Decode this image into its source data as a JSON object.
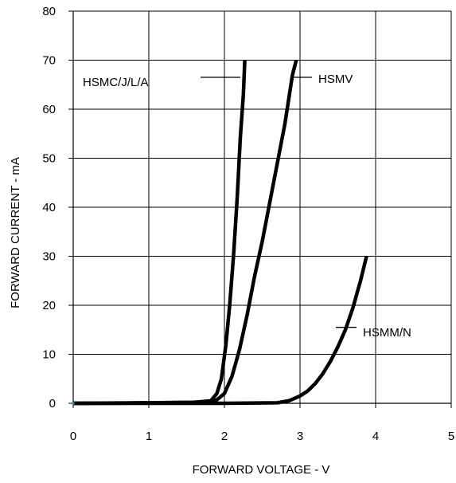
{
  "chart_data": {
    "type": "line",
    "title": "",
    "xlabel": "FORWARD VOLTAGE - V",
    "ylabel": "FORWARD CURRENT - mA",
    "xlim": [
      0,
      5
    ],
    "ylim": [
      0,
      80
    ],
    "x_ticks": [
      "0",
      "1",
      "2",
      "3",
      "4",
      "5"
    ],
    "y_ticks": [
      "0",
      "10",
      "20",
      "30",
      "40",
      "50",
      "60",
      "70",
      "80"
    ],
    "grid": true,
    "legend": "none",
    "series": [
      {
        "name": "HSMC/J/L/A",
        "points": [
          [
            0,
            0
          ],
          [
            0.5,
            0
          ],
          [
            1.0,
            0.1
          ],
          [
            1.6,
            0.2
          ],
          [
            1.82,
            0.5
          ],
          [
            1.9,
            2
          ],
          [
            1.96,
            5
          ],
          [
            2.02,
            12
          ],
          [
            2.07,
            20
          ],
          [
            2.12,
            30
          ],
          [
            2.17,
            42
          ],
          [
            2.21,
            54
          ],
          [
            2.25,
            63
          ],
          [
            2.27,
            70
          ]
        ]
      },
      {
        "name": "HSMV",
        "points": [
          [
            0,
            0
          ],
          [
            1.0,
            0.1
          ],
          [
            1.8,
            0.2
          ],
          [
            1.9,
            0.7
          ],
          [
            2.0,
            2
          ],
          [
            2.1,
            5.5
          ],
          [
            2.2,
            11
          ],
          [
            2.3,
            18
          ],
          [
            2.4,
            26
          ],
          [
            2.5,
            33
          ],
          [
            2.6,
            41
          ],
          [
            2.7,
            49
          ],
          [
            2.8,
            57
          ],
          [
            2.9,
            67
          ],
          [
            2.95,
            70
          ]
        ]
      },
      {
        "name": "HSMM/N",
        "points": [
          [
            0,
            0
          ],
          [
            1.0,
            0
          ],
          [
            2.0,
            0
          ],
          [
            2.7,
            0.1
          ],
          [
            2.85,
            0.5
          ],
          [
            3.0,
            1.5
          ],
          [
            3.1,
            2.5
          ],
          [
            3.2,
            4
          ],
          [
            3.3,
            6
          ],
          [
            3.4,
            8.5
          ],
          [
            3.5,
            11.5
          ],
          [
            3.6,
            15
          ],
          [
            3.7,
            19.5
          ],
          [
            3.8,
            25
          ],
          [
            3.88,
            30
          ]
        ]
      }
    ],
    "annotations": [
      {
        "text": "HSMC/J/L/A",
        "series": "HSMC/J/L/A",
        "at": [
          2.27,
          66.5
        ]
      },
      {
        "text": "HSMV",
        "series": "HSMV",
        "at": [
          2.92,
          66.5
        ]
      },
      {
        "text": "HSMM/N",
        "series": "HSMM/N",
        "at": [
          3.55,
          15.5
        ]
      }
    ]
  }
}
